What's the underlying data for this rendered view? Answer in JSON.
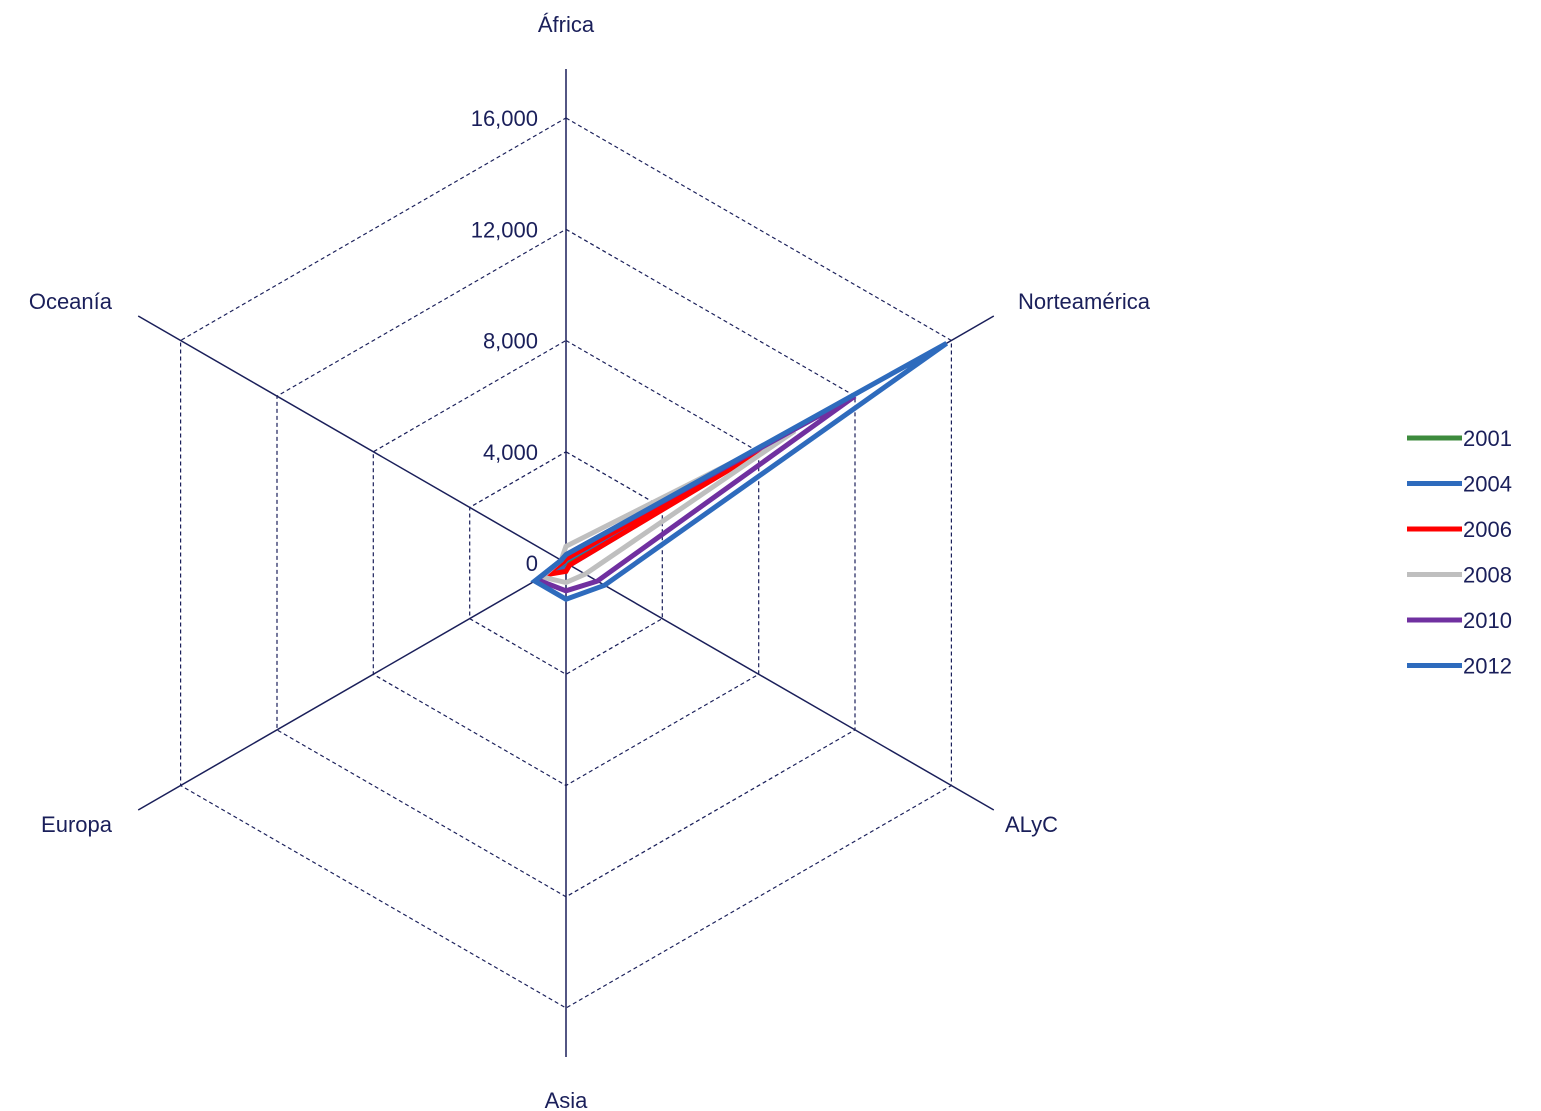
{
  "chart_data": {
    "type": "radar",
    "title": "",
    "axes": [
      "África",
      "Norteamérica",
      "ALyC",
      "Asia",
      "Europa",
      "Oceanía"
    ],
    "range": [
      0,
      16000
    ],
    "ticks": [
      0,
      4000,
      8000,
      12000,
      16000
    ],
    "tick_labels": [
      "0",
      "4,000",
      "8,000",
      "12,000",
      "16,000"
    ],
    "grid": "dashed hexagons",
    "legend_position": "right",
    "series": [
      {
        "name": "2001",
        "color": "#3d8b3d",
        "values": [
          80,
          7500,
          80,
          150,
          400,
          30
        ]
      },
      {
        "name": "2004",
        "color": "#2e6bbd",
        "values": [
          100,
          8000,
          150,
          200,
          500,
          50
        ]
      },
      {
        "name": "2006",
        "color": "#ff0000",
        "values": [
          150,
          9000,
          150,
          300,
          850,
          100
        ]
      },
      {
        "name": "2008",
        "color": "#bfbfbf",
        "values": [
          600,
          9500,
          800,
          700,
          1000,
          200
        ]
      },
      {
        "name": "2010",
        "color": "#7030a0",
        "values": [
          300,
          12000,
          1300,
          1000,
          1200,
          200
        ]
      },
      {
        "name": "2012",
        "color": "#2e6bbd",
        "values": [
          300,
          15800,
          1600,
          1300,
          1300,
          200
        ]
      }
    ]
  }
}
